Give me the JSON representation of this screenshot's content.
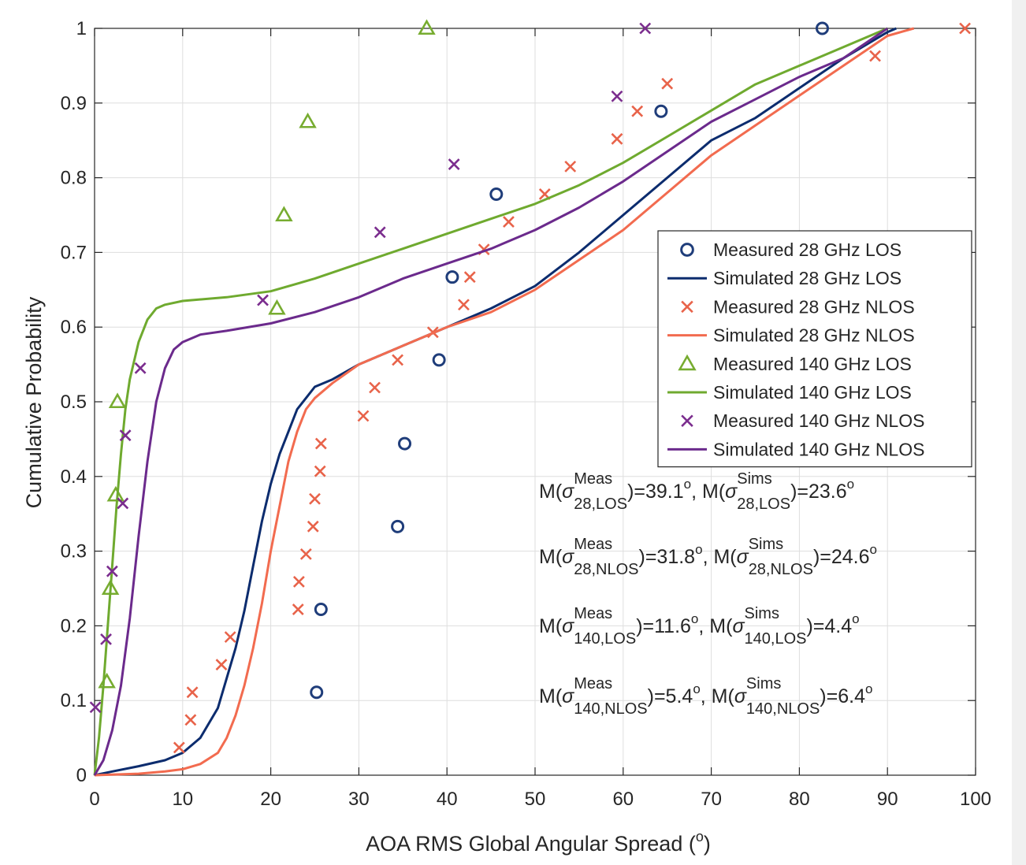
{
  "chart_data": {
    "type": "scatter",
    "xlabel": "AOA RMS Global Angular Spread (",
    "xlabel_sup": "o",
    "xlabel_end": ")",
    "ylabel": "Cumulative Probability",
    "xlim": [
      0,
      100
    ],
    "ylim": [
      0,
      1
    ],
    "x_ticks": [
      "0",
      "10",
      "20",
      "30",
      "40",
      "50",
      "60",
      "70",
      "80",
      "90",
      "100"
    ],
    "y_ticks": [
      "0",
      "0.1",
      "0.2",
      "0.3",
      "0.4",
      "0.5",
      "0.6",
      "0.7",
      "0.8",
      "0.9",
      "1"
    ],
    "grid": true,
    "legend_position": "center-right",
    "series": [
      {
        "name": "Measured 28 GHz LOS",
        "kind": "marker",
        "marker": "circle",
        "color": "#1f3d7a",
        "points": [
          [
            25.2,
            0.111
          ],
          [
            25.7,
            0.222
          ],
          [
            34.4,
            0.333
          ],
          [
            35.2,
            0.444
          ],
          [
            39.1,
            0.556
          ],
          [
            40.6,
            0.667
          ],
          [
            45.6,
            0.778
          ],
          [
            64.3,
            0.889
          ],
          [
            82.6,
            1.0
          ]
        ]
      },
      {
        "name": "Simulated 28 GHz LOS",
        "kind": "line",
        "color": "#0c2c6e",
        "points": [
          [
            0,
            0
          ],
          [
            2,
            0.005
          ],
          [
            5,
            0.012
          ],
          [
            8,
            0.02
          ],
          [
            10,
            0.03
          ],
          [
            12,
            0.05
          ],
          [
            14,
            0.09
          ],
          [
            15,
            0.13
          ],
          [
            16,
            0.17
          ],
          [
            17,
            0.22
          ],
          [
            18,
            0.28
          ],
          [
            19,
            0.34
          ],
          [
            20,
            0.39
          ],
          [
            21,
            0.43
          ],
          [
            22,
            0.46
          ],
          [
            23,
            0.49
          ],
          [
            24,
            0.505
          ],
          [
            25,
            0.52
          ],
          [
            27,
            0.53
          ],
          [
            30,
            0.55
          ],
          [
            35,
            0.575
          ],
          [
            40,
            0.6
          ],
          [
            45,
            0.625
          ],
          [
            50,
            0.655
          ],
          [
            55,
            0.7
          ],
          [
            60,
            0.75
          ],
          [
            65,
            0.8
          ],
          [
            70,
            0.85
          ],
          [
            75,
            0.88
          ],
          [
            80,
            0.92
          ],
          [
            85,
            0.96
          ],
          [
            90,
            0.995
          ],
          [
            91,
            1.0
          ]
        ]
      },
      {
        "name": "Measured 28 GHz NLOS",
        "kind": "marker",
        "marker": "x",
        "color": "#e8634a",
        "points": [
          [
            9.6,
            0.037
          ],
          [
            10.9,
            0.074
          ],
          [
            11.1,
            0.111
          ],
          [
            14.4,
            0.148
          ],
          [
            15.4,
            0.185
          ],
          [
            23.1,
            0.222
          ],
          [
            23.2,
            0.259
          ],
          [
            24.0,
            0.296
          ],
          [
            24.8,
            0.333
          ],
          [
            25.0,
            0.37
          ],
          [
            25.6,
            0.407
          ],
          [
            25.7,
            0.444
          ],
          [
            30.5,
            0.481
          ],
          [
            31.8,
            0.519
          ],
          [
            34.4,
            0.556
          ],
          [
            38.4,
            0.593
          ],
          [
            41.9,
            0.63
          ],
          [
            42.6,
            0.667
          ],
          [
            44.2,
            0.704
          ],
          [
            47.0,
            0.741
          ],
          [
            51.1,
            0.778
          ],
          [
            54.0,
            0.815
          ],
          [
            59.3,
            0.852
          ],
          [
            61.6,
            0.889
          ],
          [
            65.0,
            0.926
          ],
          [
            88.6,
            0.963
          ],
          [
            98.8,
            1.0
          ]
        ]
      },
      {
        "name": "Simulated 28 GHz NLOS",
        "kind": "line",
        "color": "#f26b4f",
        "points": [
          [
            0,
            0
          ],
          [
            5,
            0.002
          ],
          [
            8,
            0.005
          ],
          [
            10,
            0.008
          ],
          [
            12,
            0.015
          ],
          [
            14,
            0.03
          ],
          [
            15,
            0.05
          ],
          [
            16,
            0.08
          ],
          [
            17,
            0.12
          ],
          [
            18,
            0.17
          ],
          [
            19,
            0.23
          ],
          [
            20,
            0.3
          ],
          [
            21,
            0.36
          ],
          [
            22,
            0.42
          ],
          [
            23,
            0.46
          ],
          [
            24,
            0.49
          ],
          [
            25,
            0.505
          ],
          [
            27,
            0.525
          ],
          [
            30,
            0.55
          ],
          [
            35,
            0.575
          ],
          [
            40,
            0.6
          ],
          [
            45,
            0.62
          ],
          [
            50,
            0.65
          ],
          [
            55,
            0.69
          ],
          [
            60,
            0.73
          ],
          [
            65,
            0.78
          ],
          [
            70,
            0.83
          ],
          [
            75,
            0.87
          ],
          [
            80,
            0.91
          ],
          [
            85,
            0.95
          ],
          [
            90,
            0.99
          ],
          [
            93,
            1.0
          ]
        ]
      },
      {
        "name": "Measured 140 GHz LOS",
        "kind": "marker",
        "marker": "triangle",
        "color": "#77ac30",
        "points": [
          [
            1.4,
            0.125
          ],
          [
            1.8,
            0.25
          ],
          [
            2.4,
            0.375
          ],
          [
            2.6,
            0.5
          ],
          [
            20.7,
            0.625
          ],
          [
            21.5,
            0.75
          ],
          [
            24.2,
            0.875
          ],
          [
            37.7,
            1.0
          ]
        ]
      },
      {
        "name": "Simulated 140 GHz LOS",
        "kind": "line",
        "color": "#6faa2f",
        "points": [
          [
            0,
            0
          ],
          [
            0.5,
            0.05
          ],
          [
            1,
            0.12
          ],
          [
            1.5,
            0.2
          ],
          [
            2,
            0.28
          ],
          [
            2.5,
            0.36
          ],
          [
            3,
            0.43
          ],
          [
            3.5,
            0.49
          ],
          [
            4,
            0.53
          ],
          [
            5,
            0.58
          ],
          [
            6,
            0.61
          ],
          [
            7,
            0.625
          ],
          [
            8,
            0.63
          ],
          [
            10,
            0.635
          ],
          [
            15,
            0.64
          ],
          [
            20,
            0.648
          ],
          [
            25,
            0.665
          ],
          [
            30,
            0.685
          ],
          [
            35,
            0.705
          ],
          [
            40,
            0.725
          ],
          [
            45,
            0.745
          ],
          [
            50,
            0.765
          ],
          [
            55,
            0.79
          ],
          [
            60,
            0.82
          ],
          [
            65,
            0.855
          ],
          [
            70,
            0.89
          ],
          [
            75,
            0.925
          ],
          [
            80,
            0.95
          ],
          [
            85,
            0.975
          ],
          [
            90,
            1.0
          ]
        ]
      },
      {
        "name": "Measured 140 GHz NLOS",
        "kind": "marker",
        "marker": "x",
        "color": "#7b2d8e",
        "points": [
          [
            0.1,
            0.091
          ],
          [
            1.3,
            0.182
          ],
          [
            2.0,
            0.273
          ],
          [
            3.2,
            0.364
          ],
          [
            3.5,
            0.455
          ],
          [
            5.2,
            0.545
          ],
          [
            19.1,
            0.636
          ],
          [
            32.4,
            0.727
          ],
          [
            40.8,
            0.818
          ],
          [
            59.3,
            0.909
          ],
          [
            62.5,
            1.0
          ]
        ]
      },
      {
        "name": "Simulated 140 GHz NLOS",
        "kind": "line",
        "color": "#6b2a8c",
        "points": [
          [
            0,
            0
          ],
          [
            1,
            0.02
          ],
          [
            2,
            0.06
          ],
          [
            3,
            0.12
          ],
          [
            4,
            0.21
          ],
          [
            5,
            0.32
          ],
          [
            6,
            0.42
          ],
          [
            7,
            0.5
          ],
          [
            8,
            0.545
          ],
          [
            9,
            0.57
          ],
          [
            10,
            0.58
          ],
          [
            12,
            0.59
          ],
          [
            15,
            0.595
          ],
          [
            20,
            0.605
          ],
          [
            25,
            0.62
          ],
          [
            30,
            0.64
          ],
          [
            35,
            0.665
          ],
          [
            40,
            0.685
          ],
          [
            45,
            0.705
          ],
          [
            50,
            0.73
          ],
          [
            55,
            0.76
          ],
          [
            60,
            0.795
          ],
          [
            65,
            0.835
          ],
          [
            70,
            0.875
          ],
          [
            75,
            0.905
          ],
          [
            80,
            0.935
          ],
          [
            85,
            0.96
          ],
          [
            90,
            1.0
          ]
        ]
      }
    ],
    "annotations": [
      {
        "m": "M(",
        "sigma": "σ",
        "sup1": "Meas",
        "sub1": "28,LOS",
        "eq1": ")=39.1",
        "deg": "o",
        "sep": ", M(",
        "sup2": "Sims",
        "sub2": "28,LOS",
        "eq2": ")=23.6"
      },
      {
        "m": "M(",
        "sigma": "σ",
        "sup1": "Meas",
        "sub1": "28,NLOS",
        "eq1": ")=31.8",
        "deg": "o",
        "sep": ", M(",
        "sup2": "Sims",
        "sub2": "28,NLOS",
        "eq2": ")=24.6"
      },
      {
        "m": "M(",
        "sigma": "σ",
        "sup1": "Meas",
        "sub1": "140,LOS",
        "eq1": ")=11.6",
        "deg": "o",
        "sep": ", M(",
        "sup2": "Sims",
        "sub2": "140,LOS",
        "eq2": ")=4.4"
      },
      {
        "m": "M(",
        "sigma": "σ",
        "sup1": "Meas",
        "sub1": "140,NLOS",
        "eq1": ")=5.4",
        "deg": "o",
        "sep": ", M(",
        "sup2": "Sims",
        "sub2": "140,NLOS",
        "eq2": ")=6.4"
      }
    ]
  }
}
